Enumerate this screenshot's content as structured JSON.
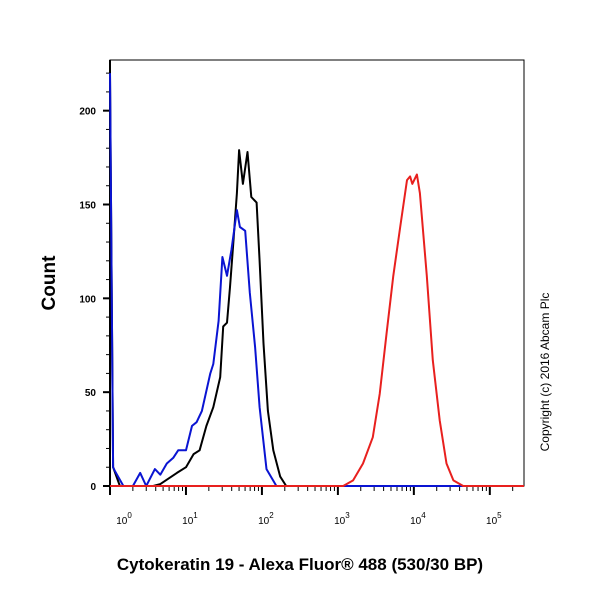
{
  "chart_data": {
    "type": "line",
    "xlabel": "Cytokeratin 19 - Alexa Fluor® 488 (530/30 BP)",
    "ylabel": "Count",
    "x_scale": "log",
    "xlim": [
      1,
      281838
    ],
    "ylim": [
      0,
      227
    ],
    "grid": false,
    "legend": "none",
    "annotation": "Copyright (c) 2016 Abcam Plc",
    "y_ticks": [
      0,
      50,
      100,
      150,
      200
    ],
    "x_ticks": [
      {
        "value": 1,
        "base": "10",
        "exp": "0"
      },
      {
        "value": 10,
        "base": "10",
        "exp": "1"
      },
      {
        "value": 100,
        "base": "10",
        "exp": "2"
      },
      {
        "value": 1000,
        "base": "10",
        "exp": "3"
      },
      {
        "value": 10000,
        "base": "10",
        "exp": "4"
      },
      {
        "value": 100000,
        "base": "10",
        "exp": "5"
      }
    ],
    "series": [
      {
        "color": "#000000",
        "points": [
          [
            1,
            220
          ],
          [
            1.1,
            10
          ],
          [
            1.35,
            0
          ],
          [
            3.7,
            0
          ],
          [
            4.6,
            1
          ],
          [
            7.6,
            7
          ],
          [
            10,
            10
          ],
          [
            12.6,
            17
          ],
          [
            15.1,
            19
          ],
          [
            18.6,
            32
          ],
          [
            22.9,
            42
          ],
          [
            28.2,
            58
          ],
          [
            30.9,
            85
          ],
          [
            34.7,
            87
          ],
          [
            38,
            106
          ],
          [
            41.7,
            128
          ],
          [
            46.8,
            156
          ],
          [
            50.1,
            179
          ],
          [
            56.2,
            161
          ],
          [
            64.6,
            178
          ],
          [
            72.4,
            154
          ],
          [
            85.1,
            151
          ],
          [
            93.3,
            120
          ],
          [
            105,
            76
          ],
          [
            120,
            40
          ],
          [
            141,
            19
          ],
          [
            174,
            5
          ],
          [
            209,
            0
          ],
          [
            281838,
            0
          ]
        ]
      },
      {
        "color": "#0a14d2",
        "points": [
          [
            1,
            220
          ],
          [
            1.1,
            10
          ],
          [
            1.16,
            8
          ],
          [
            1.5,
            0
          ],
          [
            2.0,
            0
          ],
          [
            2.5,
            7
          ],
          [
            3.0,
            0
          ],
          [
            3.9,
            9
          ],
          [
            4.6,
            6
          ],
          [
            5.6,
            12
          ],
          [
            6.8,
            15
          ],
          [
            7.9,
            19
          ],
          [
            10,
            19
          ],
          [
            12,
            32
          ],
          [
            13.8,
            34
          ],
          [
            16.2,
            40
          ],
          [
            20.9,
            60
          ],
          [
            22.9,
            65
          ],
          [
            26.9,
            88
          ],
          [
            30.2,
            122
          ],
          [
            34.7,
            112
          ],
          [
            39.8,
            126
          ],
          [
            46.8,
            147
          ],
          [
            51.3,
            138
          ],
          [
            60.3,
            136
          ],
          [
            69.2,
            103
          ],
          [
            81.3,
            74
          ],
          [
            93.3,
            42
          ],
          [
            115,
            9
          ],
          [
            155,
            0
          ],
          [
            281838,
            0
          ]
        ]
      },
      {
        "color": "#e8201e",
        "points": [
          [
            1,
            0
          ],
          [
            1175,
            0
          ],
          [
            1585,
            3
          ],
          [
            2138,
            12
          ],
          [
            2884,
            26
          ],
          [
            3548,
            49
          ],
          [
            4365,
            81
          ],
          [
            5370,
            112
          ],
          [
            6607,
            138
          ],
          [
            8128,
            163
          ],
          [
            8913,
            165
          ],
          [
            9550,
            161
          ],
          [
            10965,
            166
          ],
          [
            12023,
            156
          ],
          [
            14791,
            112
          ],
          [
            17783,
            67
          ],
          [
            21878,
            35
          ],
          [
            26915,
            12
          ],
          [
            33113,
            3
          ],
          [
            44668,
            0
          ],
          [
            281838,
            0
          ]
        ]
      }
    ]
  }
}
